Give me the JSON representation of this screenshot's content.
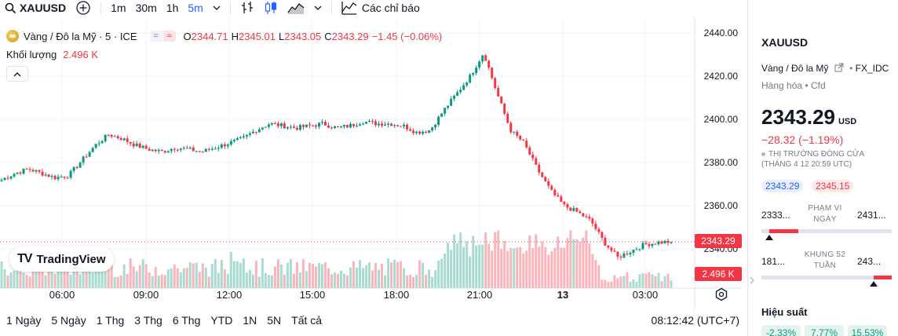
{
  "toolbar": {
    "symbol": "XAUUSD",
    "intervals": [
      "1m",
      "30m",
      "1h",
      "5m"
    ],
    "active_interval": "5m",
    "indicators_label": "Các chỉ báo"
  },
  "legend": {
    "title": "Vàng / Đô la Mỹ · 5 · ICE",
    "pill_left": "=",
    "pill_right": "≈",
    "o_label": "O",
    "o_value": "2344.71",
    "h_label": "H",
    "h_value": "2345.01",
    "l_label": "L",
    "l_value": "2343.05",
    "c_label": "C",
    "c_value": "2343.29",
    "change": "−1.45 (−0.06%)",
    "volume_label": "Khối lượng",
    "volume_value": "2.496 K"
  },
  "chart": {
    "logo_text": "TradingView",
    "last_price_tag": "2343.29",
    "volume_tag": "2.496 K",
    "colors": {
      "up": "#089981",
      "down": "#f23645",
      "vol_up": "#a8dcd1",
      "vol_down": "#f7b5bc",
      "grid": "#f0f3fa"
    }
  },
  "chart_data": {
    "type": "candlestick",
    "price_axis": {
      "ticks": [
        "2440.00",
        "2420.00",
        "2400.00",
        "2380.00",
        "2360.00",
        "2340.00"
      ],
      "ylim": [
        2330,
        2442
      ]
    },
    "time_axis": {
      "ticks": [
        "06:00",
        "09:00",
        "12:00",
        "15:00",
        "18:00",
        "21:00",
        "13",
        "03:00"
      ]
    },
    "close_path": [
      2372,
      2375,
      2377,
      2375,
      2373,
      2374,
      2381,
      2388,
      2393,
      2391,
      2388,
      2386,
      2385,
      2387,
      2386,
      2385,
      2387,
      2389,
      2391,
      2395,
      2398,
      2397,
      2396,
      2397,
      2398,
      2396,
      2397,
      2399,
      2398,
      2398,
      2397,
      2394,
      2395,
      2404,
      2412,
      2420,
      2431,
      2412,
      2395,
      2389,
      2377,
      2367,
      2360,
      2357,
      2353,
      2343,
      2336,
      2339,
      2342,
      2343,
      2343.29
    ]
  },
  "bottom": {
    "ranges": [
      "1 Ngày",
      "5 Ngày",
      "1 Thg",
      "3 Thg",
      "6 Thg",
      "YTD",
      "1N",
      "5N",
      "Tất cả"
    ],
    "clock": "08:12:42 (UTC+7)"
  },
  "panel": {
    "symbol": "XAUUSD",
    "description": "Vàng / Đô la Mỹ",
    "exchange": "FX_IDC",
    "category": "Hàng hóa",
    "type": "Cfd",
    "price": "2343.29",
    "currency": "USD",
    "change": "−28.32 (−1.19%)",
    "market_status": "THỊ TRƯỜNG ĐÓNG CỬA",
    "market_time": "(THÁNG 4 12 20:59 UTC)",
    "bid": "2343.29",
    "ask": "2345.15",
    "day_range": {
      "low": "2333...",
      "label_1": "PHẠM VI",
      "label_2": "NGÀY",
      "high": "2431...",
      "position": 0.06
    },
    "year_range": {
      "low": "181...",
      "label_1": "KHUNG 52",
      "label_2": "TUẦN",
      "high": "243...",
      "position": 0.86
    },
    "performance_title": "Hiệu suất",
    "performance": [
      "-2.33%",
      "7.77%",
      "15.53%"
    ]
  }
}
